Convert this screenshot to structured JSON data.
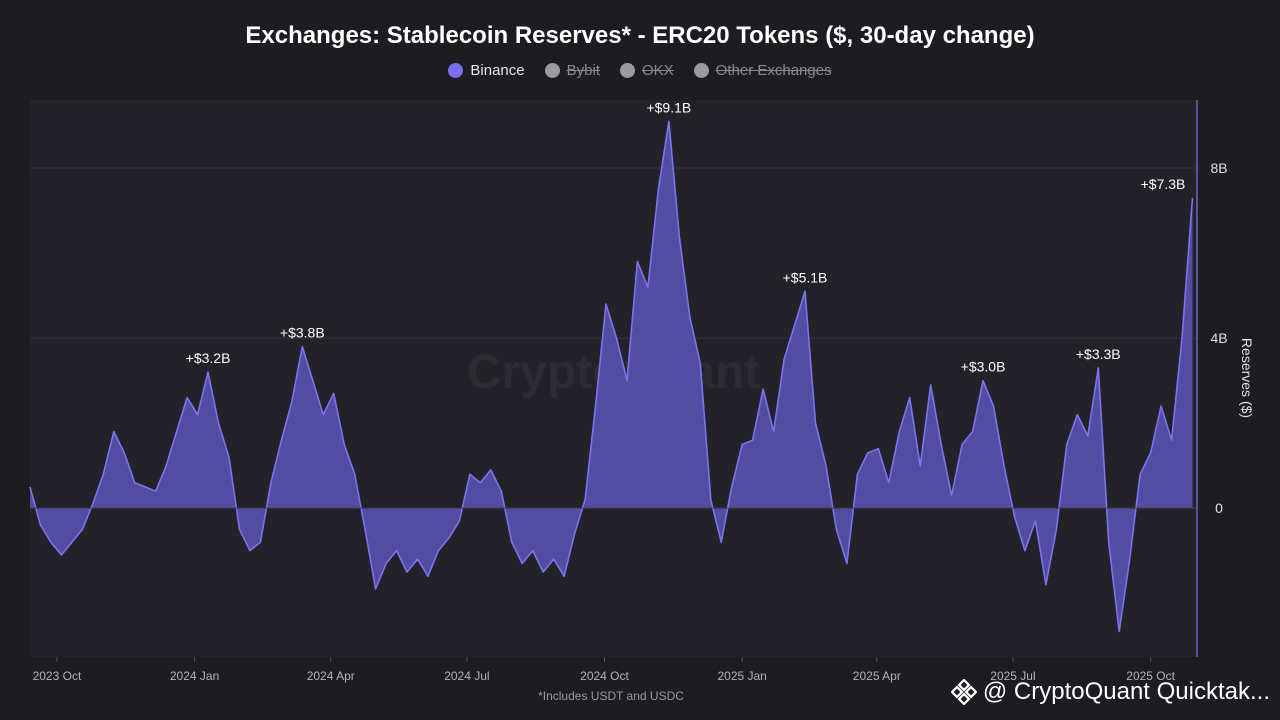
{
  "title": "Exchanges: Stablecoin Reserves* - ERC20 Tokens ($, 30-day change)",
  "legend": [
    {
      "label": "Binance",
      "active": true,
      "color": "#7b6ff0"
    },
    {
      "label": "Bybit",
      "active": false,
      "color": "#9a9aa2"
    },
    {
      "label": "OKX",
      "active": false,
      "color": "#9a9aa2"
    },
    {
      "label": "Other Exchanges",
      "active": false,
      "color": "#9a9aa2"
    }
  ],
  "footnote": "*Includes USDT and USDC",
  "watermark": "CryptoQuant",
  "brand": "@ CryptoQuant Quicktak...",
  "colors": {
    "line": "#7b74ee",
    "fill": "#5a54b8",
    "grid": "#34343c",
    "plot_bg": "#222228"
  },
  "chart_data": {
    "type": "area",
    "series": [
      {
        "name": "Binance",
        "unit": "USD billions (30-day change)",
        "points": [
          [
            "2023-09-13",
            0.5
          ],
          [
            "2023-09-20",
            -0.4
          ],
          [
            "2023-09-27",
            -0.8
          ],
          [
            "2023-10-04",
            -1.1
          ],
          [
            "2023-10-11",
            -0.8
          ],
          [
            "2023-10-18",
            -0.5
          ],
          [
            "2023-10-25",
            0.1
          ],
          [
            "2023-11-01",
            0.8
          ],
          [
            "2023-11-08",
            1.8
          ],
          [
            "2023-11-15",
            1.3
          ],
          [
            "2023-11-22",
            0.6
          ],
          [
            "2023-11-29",
            0.5
          ],
          [
            "2023-12-06",
            0.4
          ],
          [
            "2023-12-13",
            1.0
          ],
          [
            "2023-12-20",
            1.8
          ],
          [
            "2023-12-27",
            2.6
          ],
          [
            "2024-01-03",
            2.2
          ],
          [
            "2024-01-10",
            3.2
          ],
          [
            "2024-01-17",
            2.0
          ],
          [
            "2024-01-24",
            1.2
          ],
          [
            "2024-01-31",
            -0.5
          ],
          [
            "2024-02-07",
            -1.0
          ],
          [
            "2024-02-14",
            -0.8
          ],
          [
            "2024-02-21",
            0.6
          ],
          [
            "2024-02-28",
            1.6
          ],
          [
            "2024-03-06",
            2.5
          ],
          [
            "2024-03-13",
            3.8
          ],
          [
            "2024-03-20",
            3.0
          ],
          [
            "2024-03-27",
            2.2
          ],
          [
            "2024-04-03",
            2.7
          ],
          [
            "2024-04-10",
            1.5
          ],
          [
            "2024-04-17",
            0.8
          ],
          [
            "2024-04-24",
            -0.5
          ],
          [
            "2024-05-01",
            -1.9
          ],
          [
            "2024-05-08",
            -1.3
          ],
          [
            "2024-05-15",
            -1.0
          ],
          [
            "2024-05-22",
            -1.5
          ],
          [
            "2024-05-29",
            -1.2
          ],
          [
            "2024-06-05",
            -1.6
          ],
          [
            "2024-06-12",
            -1.0
          ],
          [
            "2024-06-19",
            -0.7
          ],
          [
            "2024-06-26",
            -0.3
          ],
          [
            "2024-07-03",
            0.8
          ],
          [
            "2024-07-10",
            0.6
          ],
          [
            "2024-07-17",
            0.9
          ],
          [
            "2024-07-24",
            0.4
          ],
          [
            "2024-07-31",
            -0.8
          ],
          [
            "2024-08-07",
            -1.3
          ],
          [
            "2024-08-14",
            -1.0
          ],
          [
            "2024-08-21",
            -1.5
          ],
          [
            "2024-08-28",
            -1.2
          ],
          [
            "2024-09-04",
            -1.6
          ],
          [
            "2024-09-11",
            -0.6
          ],
          [
            "2024-09-18",
            0.2
          ],
          [
            "2024-09-25",
            2.4
          ],
          [
            "2024-10-02",
            4.8
          ],
          [
            "2024-10-09",
            4.0
          ],
          [
            "2024-10-16",
            3.0
          ],
          [
            "2024-10-23",
            5.8
          ],
          [
            "2024-10-30",
            5.2
          ],
          [
            "2024-11-06",
            7.5
          ],
          [
            "2024-11-13",
            9.1
          ],
          [
            "2024-11-20",
            6.4
          ],
          [
            "2024-11-27",
            4.5
          ],
          [
            "2024-12-04",
            3.4
          ],
          [
            "2024-12-11",
            0.2
          ],
          [
            "2024-12-18",
            -0.8
          ],
          [
            "2024-12-25",
            0.5
          ],
          [
            "2025-01-01",
            1.5
          ],
          [
            "2025-01-08",
            1.6
          ],
          [
            "2025-01-15",
            2.8
          ],
          [
            "2025-01-22",
            1.8
          ],
          [
            "2025-01-29",
            3.5
          ],
          [
            "2025-02-05",
            4.3
          ],
          [
            "2025-02-12",
            5.1
          ],
          [
            "2025-02-19",
            2.0
          ],
          [
            "2025-02-26",
            1.0
          ],
          [
            "2025-03-05",
            -0.5
          ],
          [
            "2025-03-12",
            -1.3
          ],
          [
            "2025-03-19",
            0.8
          ],
          [
            "2025-03-26",
            1.3
          ],
          [
            "2025-04-02",
            1.4
          ],
          [
            "2025-04-09",
            0.6
          ],
          [
            "2025-04-16",
            1.8
          ],
          [
            "2025-04-23",
            2.6
          ],
          [
            "2025-04-30",
            1.0
          ],
          [
            "2025-05-07",
            2.9
          ],
          [
            "2025-05-14",
            1.5
          ],
          [
            "2025-05-21",
            0.3
          ],
          [
            "2025-05-28",
            1.5
          ],
          [
            "2025-06-04",
            1.8
          ],
          [
            "2025-06-11",
            3.0
          ],
          [
            "2025-06-18",
            2.4
          ],
          [
            "2025-06-25",
            1.0
          ],
          [
            "2025-07-02",
            -0.2
          ],
          [
            "2025-07-09",
            -1.0
          ],
          [
            "2025-07-16",
            -0.3
          ],
          [
            "2025-07-23",
            -1.8
          ],
          [
            "2025-07-30",
            -0.5
          ],
          [
            "2025-08-06",
            1.5
          ],
          [
            "2025-08-13",
            2.2
          ],
          [
            "2025-08-20",
            1.7
          ],
          [
            "2025-08-27",
            3.3
          ],
          [
            "2025-09-03",
            -0.8
          ],
          [
            "2025-09-10",
            -2.9
          ],
          [
            "2025-09-17",
            -1.2
          ],
          [
            "2025-09-24",
            0.8
          ],
          [
            "2025-10-01",
            1.3
          ],
          [
            "2025-10-08",
            2.4
          ],
          [
            "2025-10-15",
            1.6
          ],
          [
            "2025-10-22",
            4.0
          ],
          [
            "2025-10-29",
            7.3
          ]
        ]
      }
    ],
    "annotations": [
      {
        "date": "2024-01-10",
        "value": 3.2,
        "label": "+$3.2B"
      },
      {
        "date": "2024-03-13",
        "value": 3.8,
        "label": "+$3.8B"
      },
      {
        "date": "2024-11-13",
        "value": 9.1,
        "label": "+$9.1B"
      },
      {
        "date": "2025-02-12",
        "value": 5.1,
        "label": "+$5.1B"
      },
      {
        "date": "2025-06-11",
        "value": 3.0,
        "label": "+$3.0B"
      },
      {
        "date": "2025-08-27",
        "value": 3.3,
        "label": "+$3.3B"
      },
      {
        "date": "2025-10-29",
        "value": 7.3,
        "label": "+$7.3B"
      }
    ],
    "x_ticks": [
      {
        "date": "2023-10-01",
        "label": "2023 Oct"
      },
      {
        "date": "2024-01-01",
        "label": "2024 Jan"
      },
      {
        "date": "2024-04-01",
        "label": "2024 Apr"
      },
      {
        "date": "2024-07-01",
        "label": "2024 Jul"
      },
      {
        "date": "2024-10-01",
        "label": "2024 Oct"
      },
      {
        "date": "2025-01-01",
        "label": "2025 Jan"
      },
      {
        "date": "2025-04-01",
        "label": "2025 Apr"
      },
      {
        "date": "2025-07-01",
        "label": "2025 Jul"
      },
      {
        "date": "2025-10-01",
        "label": "2025 Oct"
      }
    ],
    "y_ticks": [
      {
        "value": 0,
        "label": "0"
      },
      {
        "value": 4,
        "label": "4B"
      },
      {
        "value": 8,
        "label": "8B"
      }
    ],
    "xlim": [
      "2023-09-13",
      "2025-11-01"
    ],
    "ylim": [
      -3.5,
      9.6
    ],
    "ylabel": "Reserves ($)",
    "grid": true
  }
}
